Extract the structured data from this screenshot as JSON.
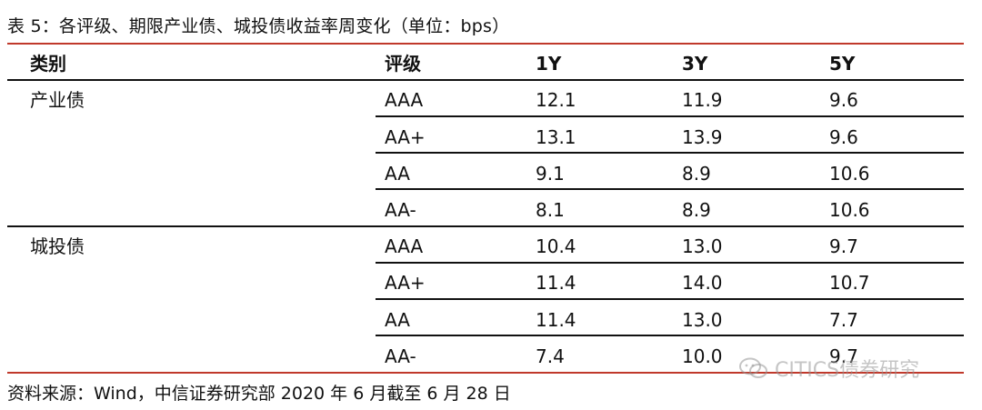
{
  "title": "表 5：各评级、期限产业债、城投债收益率周变化（单位：bps）",
  "header": {
    "category": "类别",
    "rating": "评级",
    "y1": "1Y",
    "y3": "3Y",
    "y5": "5Y"
  },
  "groups": [
    {
      "category": "产业债",
      "rows": [
        {
          "rating": "AAA",
          "y1": "12.1",
          "y3": "11.9",
          "y5": "9.6"
        },
        {
          "rating": "AA+",
          "y1": "13.1",
          "y3": "13.9",
          "y5": "9.6"
        },
        {
          "rating": "AA",
          "y1": "9.1",
          "y3": "8.9",
          "y5": "10.6"
        },
        {
          "rating": "AA-",
          "y1": "8.1",
          "y3": "8.9",
          "y5": "10.6"
        }
      ]
    },
    {
      "category": "城投债",
      "rows": [
        {
          "rating": "AAA",
          "y1": "10.4",
          "y3": "13.0",
          "y5": "9.7"
        },
        {
          "rating": "AA+",
          "y1": "11.4",
          "y3": "14.0",
          "y5": "10.7"
        },
        {
          "rating": "AA",
          "y1": "11.4",
          "y3": "13.0",
          "y5": "7.7"
        },
        {
          "rating": "AA-",
          "y1": "7.4",
          "y3": "10.0",
          "y5": "9.7"
        }
      ]
    }
  ],
  "source": "资料来源：Wind，中信证券研究部  2020 年 6 月截至 6 月 28 日",
  "watermark": "CITICS债券研究",
  "colors": {
    "accent_rule": "#c0392b",
    "row_rule": "#111111",
    "watermark": "#969696"
  }
}
